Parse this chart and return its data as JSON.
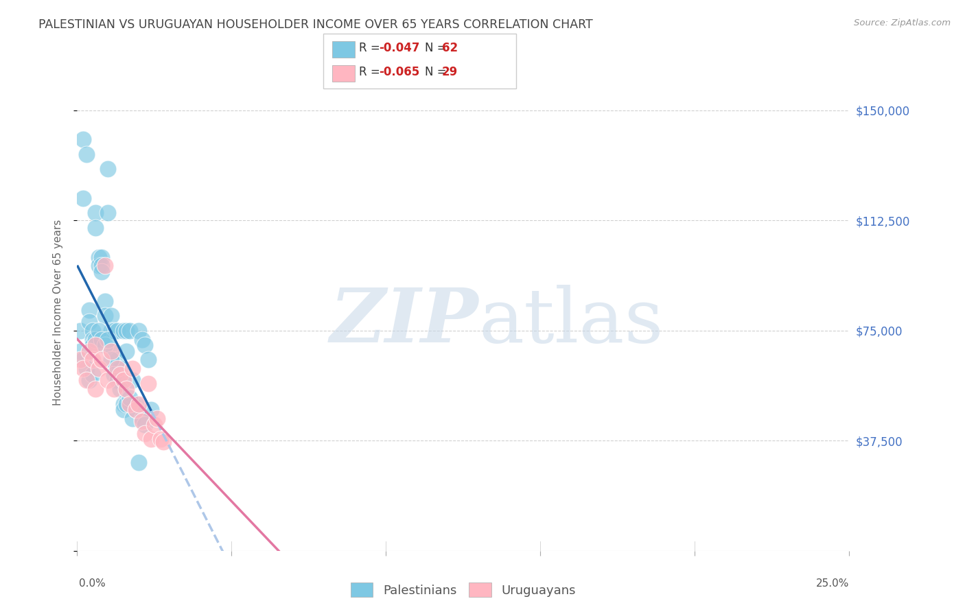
{
  "title": "PALESTINIAN VS URUGUAYAN HOUSEHOLDER INCOME OVER 65 YEARS CORRELATION CHART",
  "source": "Source: ZipAtlas.com",
  "ylabel": "Householder Income Over 65 years",
  "yticks": [
    0,
    37500,
    75000,
    112500,
    150000
  ],
  "xlim": [
    0.0,
    0.25
  ],
  "ylim": [
    0,
    162500
  ],
  "background_color": "#ffffff",
  "watermark": "ZIPatlas",
  "palestinians_x": [
    0.001,
    0.002,
    0.002,
    0.003,
    0.004,
    0.004,
    0.005,
    0.005,
    0.005,
    0.006,
    0.006,
    0.007,
    0.007,
    0.008,
    0.008,
    0.008,
    0.009,
    0.009,
    0.01,
    0.01,
    0.011,
    0.011,
    0.012,
    0.012,
    0.013,
    0.013,
    0.014,
    0.015,
    0.015,
    0.016,
    0.016,
    0.017,
    0.018,
    0.018,
    0.019,
    0.02,
    0.021,
    0.022,
    0.023,
    0.024,
    0.001,
    0.002,
    0.003,
    0.004,
    0.005,
    0.006,
    0.007,
    0.008,
    0.009,
    0.01,
    0.011,
    0.012,
    0.013,
    0.014,
    0.015,
    0.016,
    0.017,
    0.018,
    0.019,
    0.02,
    0.021,
    0.022
  ],
  "palestinians_y": [
    75000,
    140000,
    120000,
    135000,
    82000,
    78000,
    75000,
    72000,
    70000,
    115000,
    110000,
    100000,
    97000,
    100000,
    97000,
    95000,
    85000,
    80000,
    130000,
    115000,
    80000,
    75000,
    75000,
    68000,
    75000,
    65000,
    62000,
    75000,
    50000,
    75000,
    68000,
    75000,
    58000,
    50000,
    50000,
    75000,
    72000,
    70000,
    65000,
    48000,
    68000,
    65000,
    62000,
    58000,
    60000,
    72000,
    75000,
    72000,
    70000,
    72000,
    65000,
    60000,
    58000,
    55000,
    48000,
    50000,
    52000,
    45000,
    48000,
    30000,
    45000,
    43000
  ],
  "uruguayans_x": [
    0.001,
    0.002,
    0.003,
    0.004,
    0.005,
    0.006,
    0.006,
    0.007,
    0.008,
    0.009,
    0.01,
    0.011,
    0.012,
    0.013,
    0.014,
    0.015,
    0.016,
    0.017,
    0.018,
    0.019,
    0.02,
    0.021,
    0.022,
    0.023,
    0.024,
    0.025,
    0.026,
    0.027,
    0.028
  ],
  "uruguayans_y": [
    65000,
    62000,
    58000,
    68000,
    65000,
    55000,
    70000,
    62000,
    65000,
    97000,
    58000,
    68000,
    55000,
    62000,
    60000,
    58000,
    55000,
    50000,
    62000,
    48000,
    50000,
    44000,
    40000,
    57000,
    38000,
    43000,
    45000,
    38000,
    37000
  ],
  "blue_scatter_color": "#7ec8e3",
  "pink_scatter_color": "#ffb6c1",
  "blue_line_color": "#2166ac",
  "pink_line_color": "#e377a2",
  "blue_dashed_color": "#aec7e8",
  "grid_color": "#d0d0d0",
  "title_color": "#444444",
  "right_label_color": "#4472c4",
  "legend_text_dark": "#333333",
  "legend_rvalue_color": "#cc2222"
}
